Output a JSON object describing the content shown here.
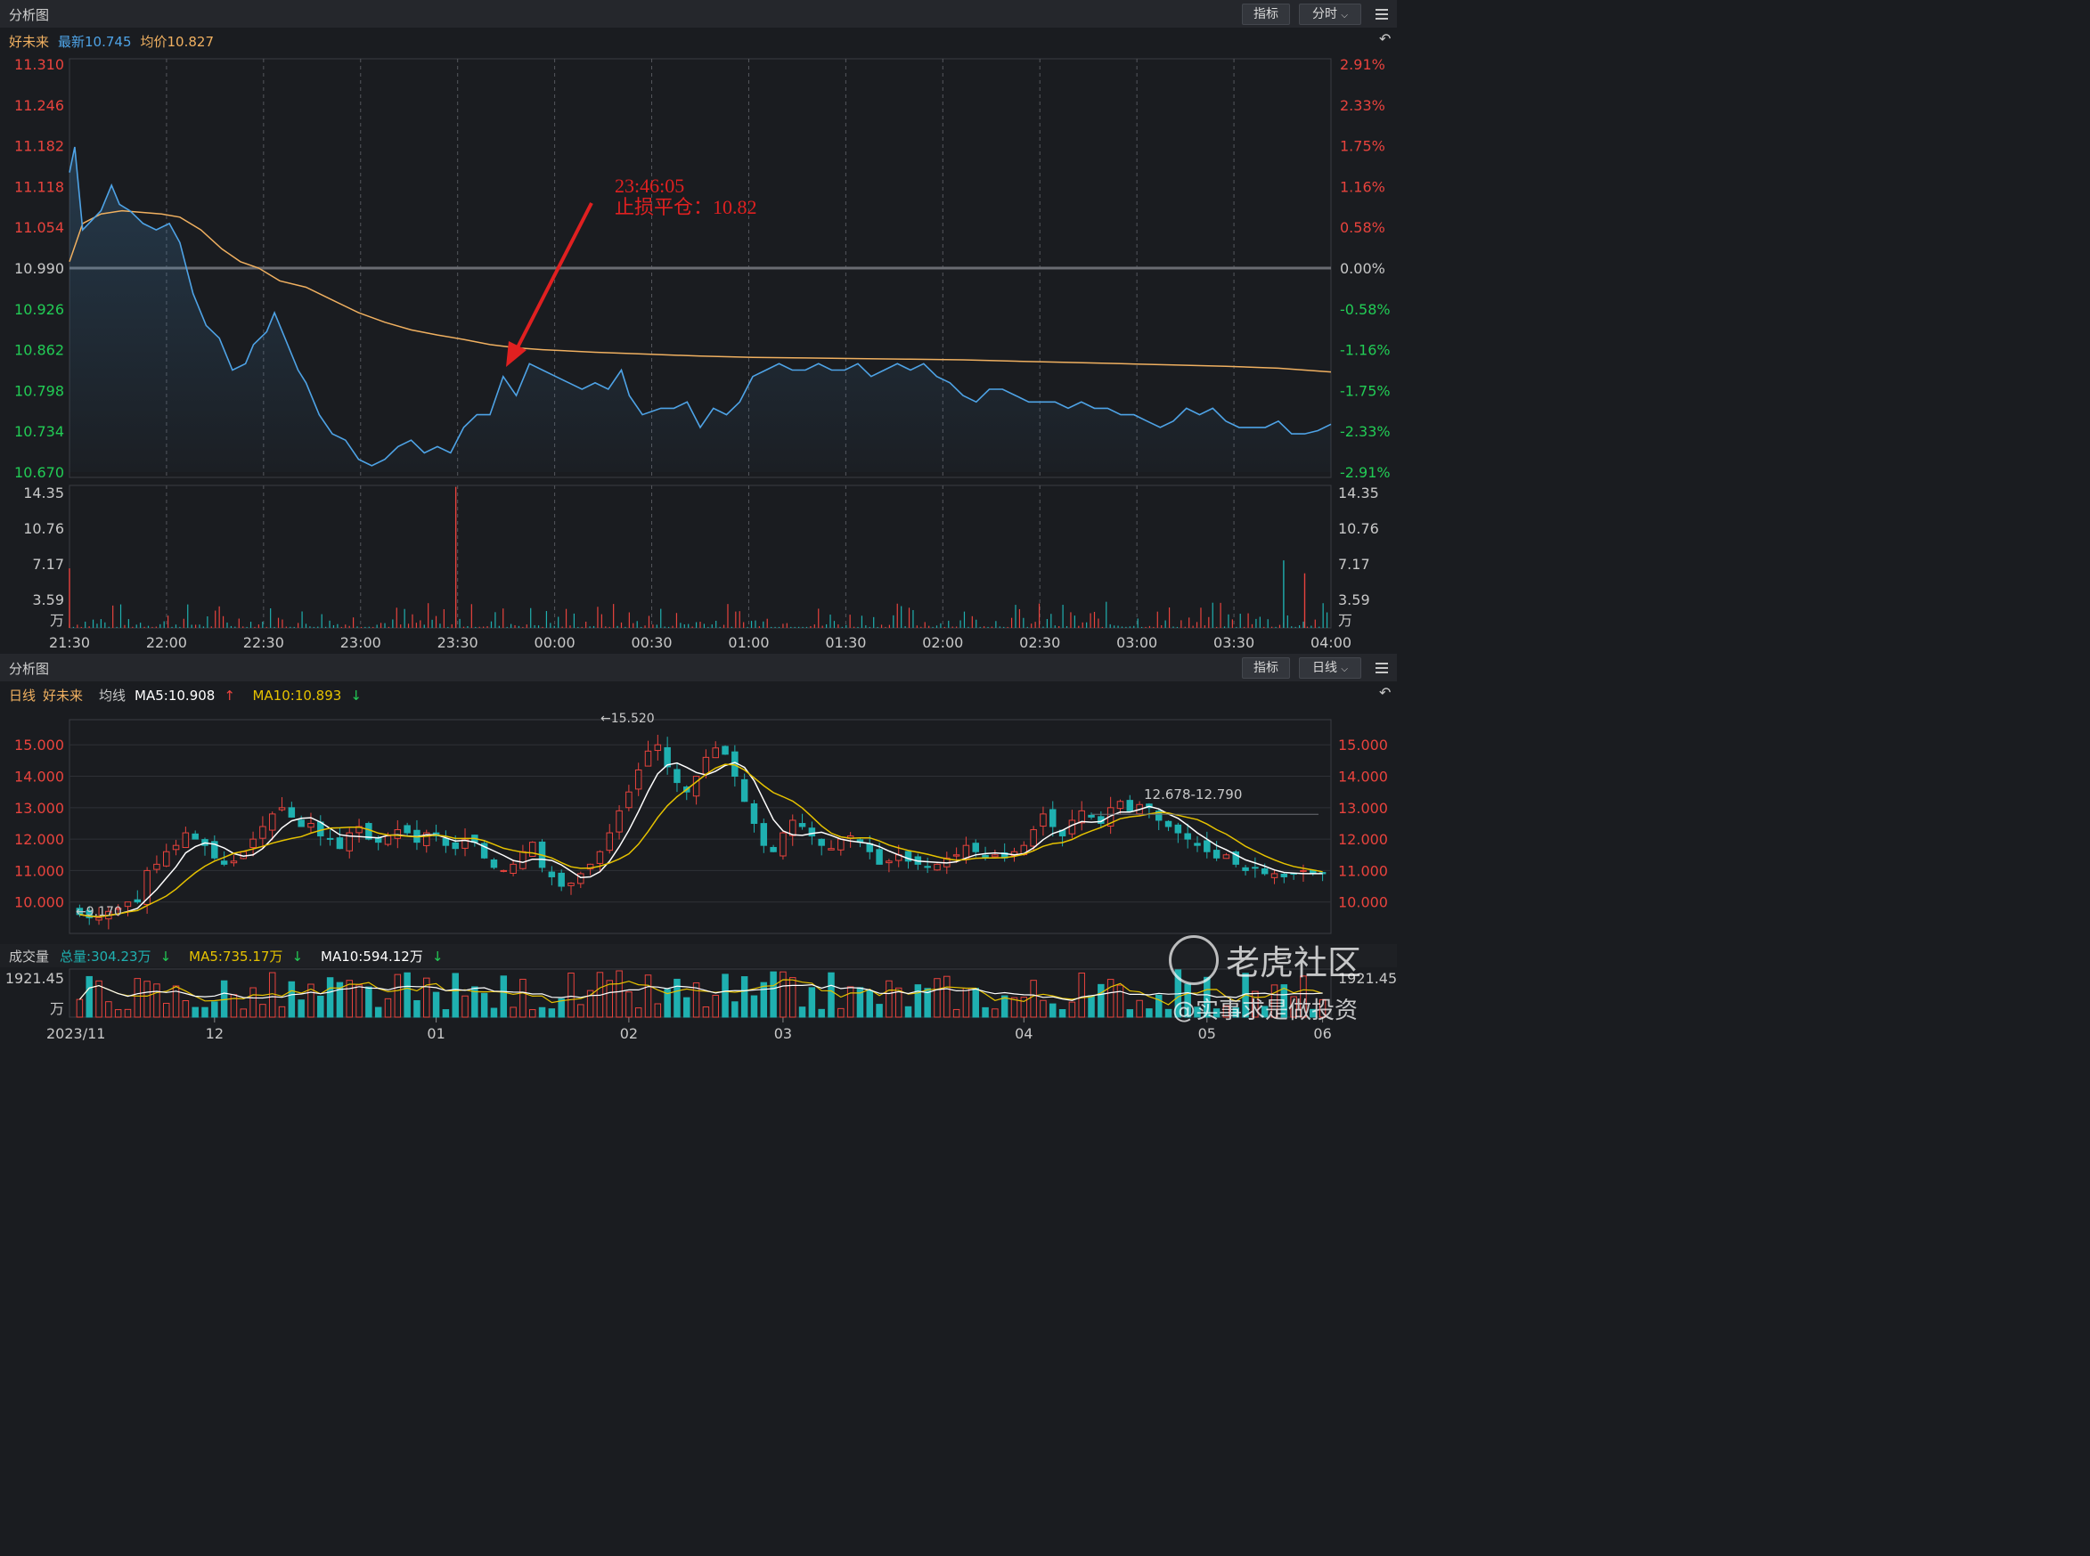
{
  "top_panel": {
    "title": "分析图",
    "indicator_btn": "指标",
    "period_btn": "分时",
    "stock_name": "好未来",
    "latest_label": "最新10.745",
    "avg_label": "均价10.827",
    "annotation_time": "23:46:05",
    "annotation_text": "止损平仓：10.82"
  },
  "bottom_panel": {
    "title": "分析图",
    "indicator_btn": "指标",
    "period_btn": "日线",
    "period_label": "日线",
    "stock_name": "好未来",
    "ma_label": "均线",
    "ma5_label": "MA5:10.908",
    "ma10_label": "MA10:10.893",
    "high_marker": "←15.520",
    "low_marker": "←9.170",
    "range_marker": "12.678-12.790",
    "volume_title": "成交量",
    "vol_total": "总量:304.23万",
    "vol_ma5": "MA5:735.17万",
    "vol_ma10": "MA10:594.12万"
  },
  "watermark": {
    "brand": "老虎社区",
    "author": "@实事求是做投资"
  },
  "colors": {
    "up": "#e8433d",
    "down": "#1fb0b0",
    "price_line": "#4ea3e6",
    "avg_line": "#f0b060",
    "ma5": "#ffffff",
    "ma10": "#e6c200",
    "annotation": "#e02020"
  },
  "chart_data": [
    {
      "type": "line",
      "name": "intraday",
      "x_ticks": [
        "21:30",
        "22:00",
        "22:30",
        "23:00",
        "23:30",
        "00:00",
        "00:30",
        "01:00",
        "01:30",
        "02:00",
        "02:30",
        "03:00",
        "03:30",
        "04:00"
      ],
      "y_ticks_left": [
        "11.310",
        "11.246",
        "11.182",
        "11.118",
        "11.054",
        "10.990",
        "10.926",
        "10.862",
        "10.798",
        "10.734",
        "10.670"
      ],
      "y_ticks_right": [
        "2.91%",
        "2.33%",
        "1.75%",
        "1.16%",
        "0.58%",
        "0.00%",
        "-0.58%",
        "-1.16%",
        "-1.75%",
        "-2.33%",
        "-2.91%"
      ],
      "ylim": [
        10.67,
        11.31
      ],
      "prev_close": 10.99,
      "price": [
        [
          0,
          11.14
        ],
        [
          2,
          11.18
        ],
        [
          5,
          11.05
        ],
        [
          12,
          11.08
        ],
        [
          16,
          11.12
        ],
        [
          19,
          11.09
        ],
        [
          23,
          11.08
        ],
        [
          28,
          11.06
        ],
        [
          33,
          11.05
        ],
        [
          38,
          11.06
        ],
        [
          42,
          11.03
        ],
        [
          47,
          10.95
        ],
        [
          52,
          10.9
        ],
        [
          57,
          10.88
        ],
        [
          62,
          10.83
        ],
        [
          67,
          10.84
        ],
        [
          70,
          10.87
        ],
        [
          75,
          10.89
        ],
        [
          78,
          10.92
        ],
        [
          82,
          10.88
        ],
        [
          87,
          10.83
        ],
        [
          90,
          10.81
        ],
        [
          95,
          10.76
        ],
        [
          100,
          10.73
        ],
        [
          105,
          10.72
        ],
        [
          110,
          10.69
        ],
        [
          115,
          10.68
        ],
        [
          120,
          10.69
        ],
        [
          125,
          10.71
        ],
        [
          130,
          10.72
        ],
        [
          135,
          10.7
        ],
        [
          140,
          10.71
        ],
        [
          145,
          10.7
        ],
        [
          150,
          10.74
        ],
        [
          155,
          10.76
        ],
        [
          160,
          10.76
        ],
        [
          165,
          10.82
        ],
        [
          170,
          10.79
        ],
        [
          175,
          10.84
        ],
        [
          180,
          10.83
        ],
        [
          185,
          10.82
        ],
        [
          190,
          10.81
        ],
        [
          195,
          10.8
        ],
        [
          200,
          10.81
        ],
        [
          205,
          10.8
        ],
        [
          210,
          10.83
        ],
        [
          213,
          10.79
        ],
        [
          218,
          10.76
        ],
        [
          225,
          10.77
        ],
        [
          230,
          10.77
        ],
        [
          235,
          10.78
        ],
        [
          240,
          10.74
        ],
        [
          245,
          10.77
        ],
        [
          250,
          10.76
        ],
        [
          255,
          10.78
        ],
        [
          260,
          10.82
        ],
        [
          265,
          10.83
        ],
        [
          270,
          10.84
        ],
        [
          275,
          10.83
        ],
        [
          280,
          10.83
        ],
        [
          285,
          10.84
        ],
        [
          290,
          10.83
        ],
        [
          295,
          10.83
        ],
        [
          300,
          10.84
        ],
        [
          305,
          10.82
        ],
        [
          310,
          10.83
        ],
        [
          315,
          10.84
        ],
        [
          320,
          10.83
        ],
        [
          325,
          10.84
        ],
        [
          330,
          10.82
        ],
        [
          335,
          10.81
        ],
        [
          340,
          10.79
        ],
        [
          345,
          10.78
        ],
        [
          350,
          10.8
        ],
        [
          355,
          10.8
        ],
        [
          360,
          10.79
        ],
        [
          365,
          10.78
        ],
        [
          370,
          10.78
        ],
        [
          375,
          10.78
        ],
        [
          380,
          10.77
        ],
        [
          385,
          10.78
        ],
        [
          390,
          10.77
        ],
        [
          395,
          10.77
        ],
        [
          400,
          10.76
        ],
        [
          405,
          10.76
        ],
        [
          410,
          10.75
        ],
        [
          415,
          10.74
        ],
        [
          420,
          10.75
        ],
        [
          425,
          10.77
        ],
        [
          430,
          10.76
        ],
        [
          435,
          10.77
        ],
        [
          440,
          10.75
        ],
        [
          445,
          10.74
        ],
        [
          450,
          10.74
        ],
        [
          455,
          10.74
        ],
        [
          460,
          10.75
        ],
        [
          465,
          10.73
        ],
        [
          470,
          10.73
        ],
        [
          475,
          10.735
        ],
        [
          480,
          10.745
        ]
      ],
      "avg": [
        [
          0,
          11.0
        ],
        [
          5,
          11.06
        ],
        [
          12,
          11.075
        ],
        [
          20,
          11.08
        ],
        [
          35,
          11.075
        ],
        [
          42,
          11.07
        ],
        [
          50,
          11.05
        ],
        [
          58,
          11.02
        ],
        [
          65,
          11.0
        ],
        [
          72,
          10.99
        ],
        [
          80,
          10.97
        ],
        [
          90,
          10.96
        ],
        [
          100,
          10.94
        ],
        [
          110,
          10.92
        ],
        [
          120,
          10.905
        ],
        [
          130,
          10.893
        ],
        [
          140,
          10.885
        ],
        [
          150,
          10.878
        ],
        [
          160,
          10.87
        ],
        [
          170,
          10.865
        ],
        [
          180,
          10.862
        ],
        [
          200,
          10.858
        ],
        [
          220,
          10.855
        ],
        [
          240,
          10.852
        ],
        [
          260,
          10.85
        ],
        [
          280,
          10.849
        ],
        [
          300,
          10.848
        ],
        [
          320,
          10.847
        ],
        [
          340,
          10.846
        ],
        [
          360,
          10.844
        ],
        [
          380,
          10.842
        ],
        [
          400,
          10.84
        ],
        [
          420,
          10.838
        ],
        [
          440,
          10.836
        ],
        [
          460,
          10.833
        ],
        [
          470,
          10.83
        ],
        [
          480,
          10.827
        ]
      ],
      "volume": {
        "ylabel": "万",
        "y_ticks": [
          "14.35",
          "10.76",
          "7.17",
          "3.59"
        ],
        "ylim": [
          0,
          14.35
        ],
        "spikes": [
          [
            0,
            6.0,
            "up"
          ],
          [
            147,
            14.2,
            "up"
          ],
          [
            462,
            6.8,
            "down"
          ],
          [
            470,
            5.5,
            "up"
          ]
        ]
      }
    },
    {
      "type": "candlestick",
      "name": "daily",
      "x_ticks": [
        "2023/11",
        "12",
        "01",
        "02",
        "03",
        "04",
        "05",
        "06"
      ],
      "y_ticks": [
        "15.000",
        "14.000",
        "13.000",
        "12.000",
        "11.000",
        "10.000"
      ],
      "ylim": [
        9.0,
        15.8
      ],
      "close": [
        9.6,
        9.5,
        9.5,
        9.7,
        9.8,
        10.0,
        10.0,
        11.0,
        11.2,
        11.6,
        11.8,
        12.2,
        12.0,
        11.8,
        11.4,
        11.2,
        11.3,
        11.6,
        12.0,
        12.4,
        12.8,
        13.0,
        12.7,
        12.4,
        12.5,
        12.1,
        12.0,
        11.7,
        12.2,
        12.4,
        12.0,
        11.9,
        12.1,
        12.3,
        12.2,
        11.9,
        12.2,
        12.1,
        11.8,
        11.7,
        12.0,
        11.9,
        11.4,
        11.1,
        11.0,
        11.2,
        11.6,
        11.9,
        11.1,
        10.8,
        10.5,
        10.6,
        10.9,
        11.2,
        11.6,
        12.2,
        12.9,
        13.5,
        14.2,
        14.8,
        15.0,
        14.3,
        13.8,
        13.5,
        14.0,
        14.6,
        14.9,
        14.7,
        14.0,
        13.2,
        12.5,
        11.8,
        11.6,
        12.2,
        12.6,
        12.4,
        12.1,
        11.8,
        11.7,
        12.0,
        12.1,
        11.9,
        11.6,
        11.2,
        11.3,
        11.5,
        11.3,
        11.2,
        11.1,
        11.2,
        11.4,
        11.5,
        11.8,
        11.6,
        11.4,
        11.5,
        11.4,
        11.6,
        11.8,
        12.3,
        12.8,
        12.4,
        12.1,
        12.6,
        12.9,
        12.7,
        12.5,
        13.0,
        13.2,
        12.9,
        13.1,
        13.0,
        12.6,
        12.4,
        12.2,
        12.0,
        11.8,
        11.6,
        11.4,
        11.5,
        11.2,
        11.0,
        11.1,
        10.9,
        10.9,
        10.8,
        10.9,
        11.0,
        10.9,
        10.9
      ],
      "ma5_label": "MA5",
      "ma10_label": "MA10",
      "high": 15.52,
      "low": 9.17,
      "range_line": [
        12.678,
        12.79
      ],
      "volume": {
        "ylabel": "万",
        "y_ticks": [
          "1921.45"
        ],
        "ylim": [
          0,
          1921.45
        ]
      }
    }
  ]
}
